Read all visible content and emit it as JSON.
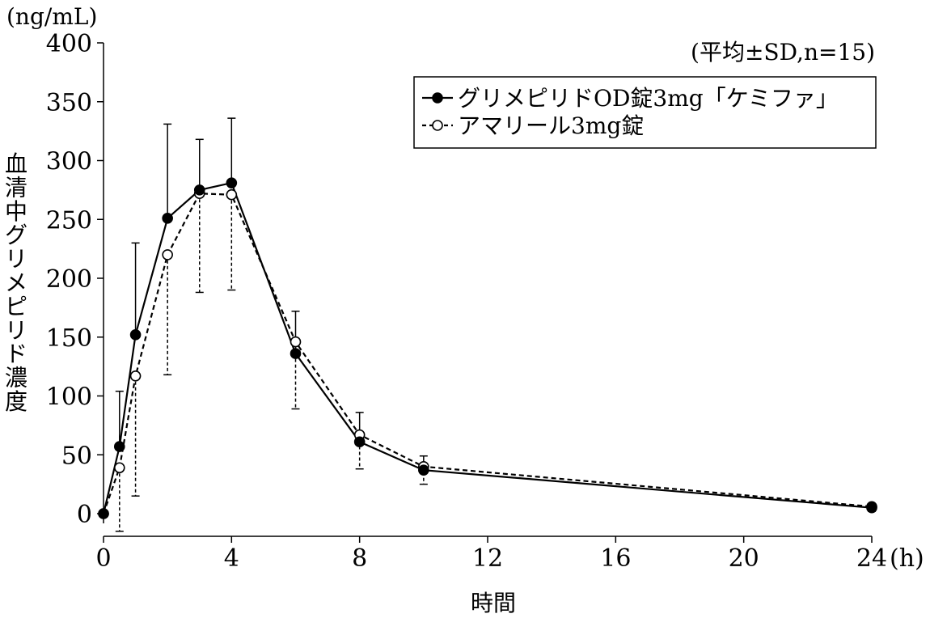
{
  "chart_data": {
    "type": "line",
    "title": "",
    "xlabel": "時間",
    "ylabel": "血清中グリメピリド濃度",
    "x_unit": "(h)",
    "y_unit": "(ng/mL)",
    "stat_note": "(平均±SD,n=15)",
    "xlim": [
      0,
      24
    ],
    "ylim": [
      0,
      400
    ],
    "xticks": [
      "0",
      "4",
      "8",
      "12",
      "16",
      "20",
      "24"
    ],
    "yticks": [
      "0",
      "50",
      "100",
      "150",
      "200",
      "250",
      "300",
      "350",
      "400"
    ],
    "legend_position": "top-right",
    "grid": false,
    "series": [
      {
        "name": "グリメピリドOD錠3mg「ケミファ」",
        "marker": "filled-circle",
        "line_style": "solid",
        "color": "#000000",
        "x": [
          0,
          0.5,
          1,
          2,
          3,
          4,
          6,
          8,
          10,
          24
        ],
        "y": [
          0,
          57,
          152,
          251,
          275,
          281,
          136,
          61,
          37,
          5
        ],
        "sd": [
          0,
          47,
          78,
          80,
          43,
          55,
          36,
          25,
          12,
          3
        ]
      },
      {
        "name": "アマリール3mg錠",
        "marker": "open-circle",
        "line_style": "dashed",
        "color": "#000000",
        "x": [
          0,
          0.5,
          1,
          2,
          3,
          4,
          6,
          8,
          10,
          24
        ],
        "y": [
          0,
          39,
          117,
          220,
          272,
          271,
          146,
          67,
          40,
          6
        ],
        "sd": [
          0,
          54,
          102,
          102,
          84,
          81,
          57,
          29,
          15,
          4
        ]
      }
    ]
  }
}
